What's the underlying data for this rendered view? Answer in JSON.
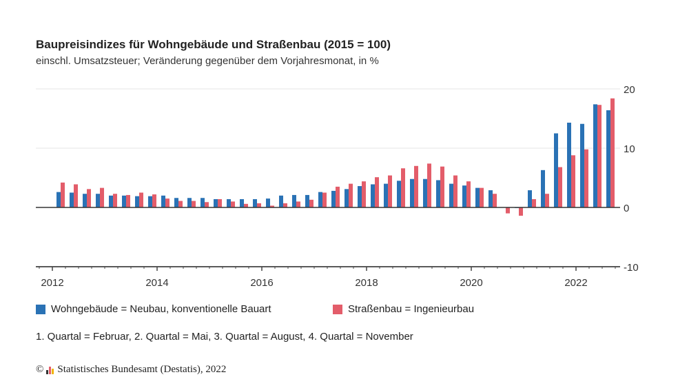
{
  "chart_data": {
    "type": "bar",
    "title": "Baupreisindizes für Wohngebäude und Straßenbau (2015 = 100)",
    "subtitle": "einschl. Umsatzsteuer; Veränderung gegenüber dem Vorjahresmonat, in %",
    "categories": [
      "2012 Q1",
      "2012 Q2",
      "2012 Q3",
      "2012 Q4",
      "2013 Q1",
      "2013 Q2",
      "2013 Q3",
      "2013 Q4",
      "2014 Q1",
      "2014 Q2",
      "2014 Q3",
      "2014 Q4",
      "2015 Q1",
      "2015 Q2",
      "2015 Q3",
      "2015 Q4",
      "2016 Q1",
      "2016 Q2",
      "2016 Q3",
      "2016 Q4",
      "2017 Q1",
      "2017 Q2",
      "2017 Q3",
      "2017 Q4",
      "2018 Q1",
      "2018 Q2",
      "2018 Q3",
      "2018 Q4",
      "2019 Q1",
      "2019 Q2",
      "2019 Q3",
      "2019 Q4",
      "2020 Q1",
      "2020 Q2",
      "2020 Q3",
      "2020 Q4",
      "2021 Q1",
      "2021 Q2",
      "2021 Q3",
      "2021 Q4",
      "2022 Q1",
      "2022 Q2",
      "2022 Q3"
    ],
    "series": [
      {
        "name": "Wohngebäude = Neubau, konventionelle Bauart",
        "color": "#2a72b5",
        "values": [
          2.6,
          2.5,
          2.3,
          2.3,
          2.0,
          2.0,
          1.9,
          1.9,
          2.0,
          1.6,
          1.6,
          1.6,
          1.4,
          1.4,
          1.4,
          1.4,
          1.5,
          2.0,
          2.1,
          2.1,
          2.6,
          2.8,
          3.1,
          3.6,
          3.9,
          4.0,
          4.5,
          4.8,
          4.8,
          4.6,
          4.0,
          3.7,
          3.3,
          2.9,
          0.0,
          -0.1,
          2.9,
          6.3,
          12.5,
          14.3,
          14.1,
          17.4,
          16.4
        ]
      },
      {
        "name": "Straßenbau = Ingenieurbau",
        "color": "#e35d6a",
        "values": [
          4.2,
          3.9,
          3.1,
          3.3,
          2.3,
          2.1,
          2.5,
          2.2,
          1.5,
          1.1,
          1.1,
          0.9,
          1.4,
          1.0,
          0.6,
          0.7,
          0.3,
          0.7,
          1.0,
          1.3,
          2.5,
          3.5,
          4.0,
          4.4,
          5.1,
          5.4,
          6.6,
          7.0,
          7.4,
          6.9,
          5.4,
          4.4,
          3.3,
          2.3,
          -1.0,
          -1.4,
          1.4,
          2.3,
          6.8,
          8.8,
          9.8,
          17.3,
          18.4
        ]
      }
    ],
    "x_tick_labels": [
      "2012",
      "2014",
      "2016",
      "2018",
      "2020",
      "2022"
    ],
    "y_ticks": [
      20,
      10,
      0,
      -10
    ],
    "ylim": [
      -10,
      20
    ],
    "y_axis_side": "right",
    "grid": true,
    "legend_position": "bottom"
  },
  "note": "1. Quartal = Februar, 2. Quartal = Mai, 3. Quartal = August, 4. Quartal = November",
  "source": "Statistisches Bundesamt (Destatis), 2022",
  "copyright": "©"
}
